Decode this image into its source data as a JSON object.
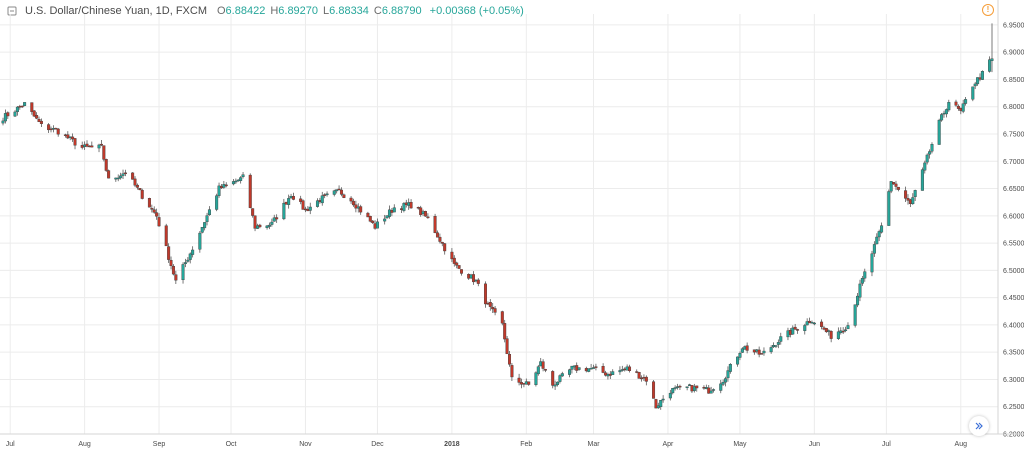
{
  "header": {
    "title": "U.S. Dollar/Chinese Yuan, 1D, FXCM",
    "open_label": "O",
    "open": "6.88422",
    "high_label": "H",
    "high": "6.89270",
    "low_label": "L",
    "low": "6.88334",
    "close_label": "C",
    "close": "6.88790",
    "change": "+0.00368 (+0.05%)",
    "info_icon": "!"
  },
  "colors": {
    "up": "#26a69a",
    "down": "#c0392b",
    "wick": "#5a5a5a",
    "grid": "#ececec",
    "axis_text": "#4a4a4a"
  },
  "chart_data": {
    "type": "candlestick",
    "symbol": "USDCNY",
    "interval": "1D",
    "source": "FXCM",
    "ylim": [
      6.2,
      6.97
    ],
    "y_ticks": [
      "6.20000",
      "6.25000",
      "6.30000",
      "6.35000",
      "6.40000",
      "6.45000",
      "6.50000",
      "6.55000",
      "6.60000",
      "6.65000",
      "6.70000",
      "6.75000",
      "6.80000",
      "6.85000",
      "6.90000",
      "6.95000"
    ],
    "x_ticks": [
      "Jul",
      "Aug",
      "Sep",
      "Oct",
      "Nov",
      "Dec",
      "2018",
      "Feb",
      "Mar",
      "Apr",
      "May",
      "Jun",
      "Jul",
      "Aug"
    ],
    "grid": true,
    "close_anchors": [
      [
        "2017-06-28",
        6.78
      ],
      [
        "2017-07-07",
        6.805
      ],
      [
        "2017-07-14",
        6.765
      ],
      [
        "2017-07-21",
        6.755
      ],
      [
        "2017-07-31",
        6.725
      ],
      [
        "2017-08-08",
        6.725
      ],
      [
        "2017-08-11",
        6.665
      ],
      [
        "2017-08-18",
        6.68
      ],
      [
        "2017-08-31",
        6.6
      ],
      [
        "2017-09-08",
        6.48
      ],
      [
        "2017-09-15",
        6.54
      ],
      [
        "2017-09-26",
        6.65
      ],
      [
        "2017-09-29",
        6.655
      ],
      [
        "2017-10-06",
        6.67
      ],
      [
        "2017-10-11",
        6.58
      ],
      [
        "2017-10-18",
        6.585
      ],
      [
        "2017-10-26",
        6.64
      ],
      [
        "2017-11-01",
        6.61
      ],
      [
        "2017-11-07",
        6.63
      ],
      [
        "2017-11-15",
        6.645
      ],
      [
        "2017-11-20",
        6.63
      ],
      [
        "2017-11-30",
        6.58
      ],
      [
        "2017-12-08",
        6.615
      ],
      [
        "2017-12-15",
        6.62
      ],
      [
        "2017-12-22",
        6.595
      ],
      [
        "2018-01-02",
        6.51
      ],
      [
        "2018-01-11",
        6.48
      ],
      [
        "2018-01-16",
        6.435
      ],
      [
        "2018-01-22",
        6.4
      ],
      [
        "2018-01-26",
        6.3
      ],
      [
        "2018-02-02",
        6.29
      ],
      [
        "2018-02-07",
        6.33
      ],
      [
        "2018-02-12",
        6.29
      ],
      [
        "2018-02-20",
        6.32
      ],
      [
        "2018-02-28",
        6.32
      ],
      [
        "2018-03-07",
        6.31
      ],
      [
        "2018-03-15",
        6.32
      ],
      [
        "2018-03-23",
        6.3
      ],
      [
        "2018-03-27",
        6.25
      ],
      [
        "2018-04-02",
        6.28
      ],
      [
        "2018-04-10",
        6.285
      ],
      [
        "2018-04-18",
        6.28
      ],
      [
        "2018-04-24",
        6.3
      ],
      [
        "2018-05-02",
        6.36
      ],
      [
        "2018-05-10",
        6.345
      ],
      [
        "2018-05-18",
        6.375
      ],
      [
        "2018-05-25",
        6.395
      ],
      [
        "2018-05-31",
        6.41
      ],
      [
        "2018-06-08",
        6.38
      ],
      [
        "2018-06-15",
        6.4
      ],
      [
        "2018-06-20",
        6.47
      ],
      [
        "2018-06-29",
        6.58
      ],
      [
        "2018-07-03",
        6.665
      ],
      [
        "2018-07-11",
        6.62
      ],
      [
        "2018-07-16",
        6.68
      ],
      [
        "2018-07-23",
        6.77
      ],
      [
        "2018-07-27",
        6.81
      ],
      [
        "2018-08-01",
        6.79
      ],
      [
        "2018-08-06",
        6.84
      ],
      [
        "2018-08-10",
        6.86
      ],
      [
        "2018-08-14",
        6.89
      ]
    ],
    "last": {
      "open": 6.88422,
      "high": 6.8927,
      "low": 6.88334,
      "close": 6.8879
    }
  }
}
